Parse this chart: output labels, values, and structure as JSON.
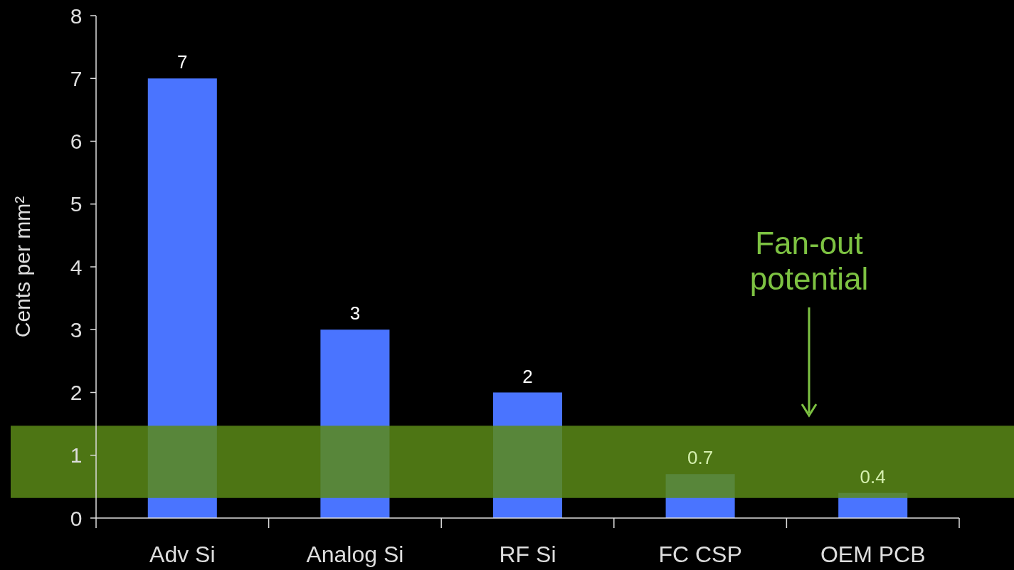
{
  "chart_data": {
    "type": "bar",
    "ylabel": "Cents per mm²",
    "categories": [
      "Adv Si",
      "Analog Si",
      "RF Si",
      "FC CSP",
      "OEM PCB"
    ],
    "values": [
      7,
      3,
      2,
      0.7,
      0.4
    ],
    "color": "#4a74ff",
    "data_labels": true,
    "ylim": [
      0,
      8
    ],
    "yticks": [
      0,
      1,
      2,
      3,
      4,
      5,
      6,
      7,
      8
    ],
    "grid": false,
    "bands": [
      {
        "axis": "y",
        "from": 0.32,
        "to": 1.47,
        "color": "#5a8a17"
      }
    ],
    "annotations": [
      "Fan-out potential"
    ]
  }
}
